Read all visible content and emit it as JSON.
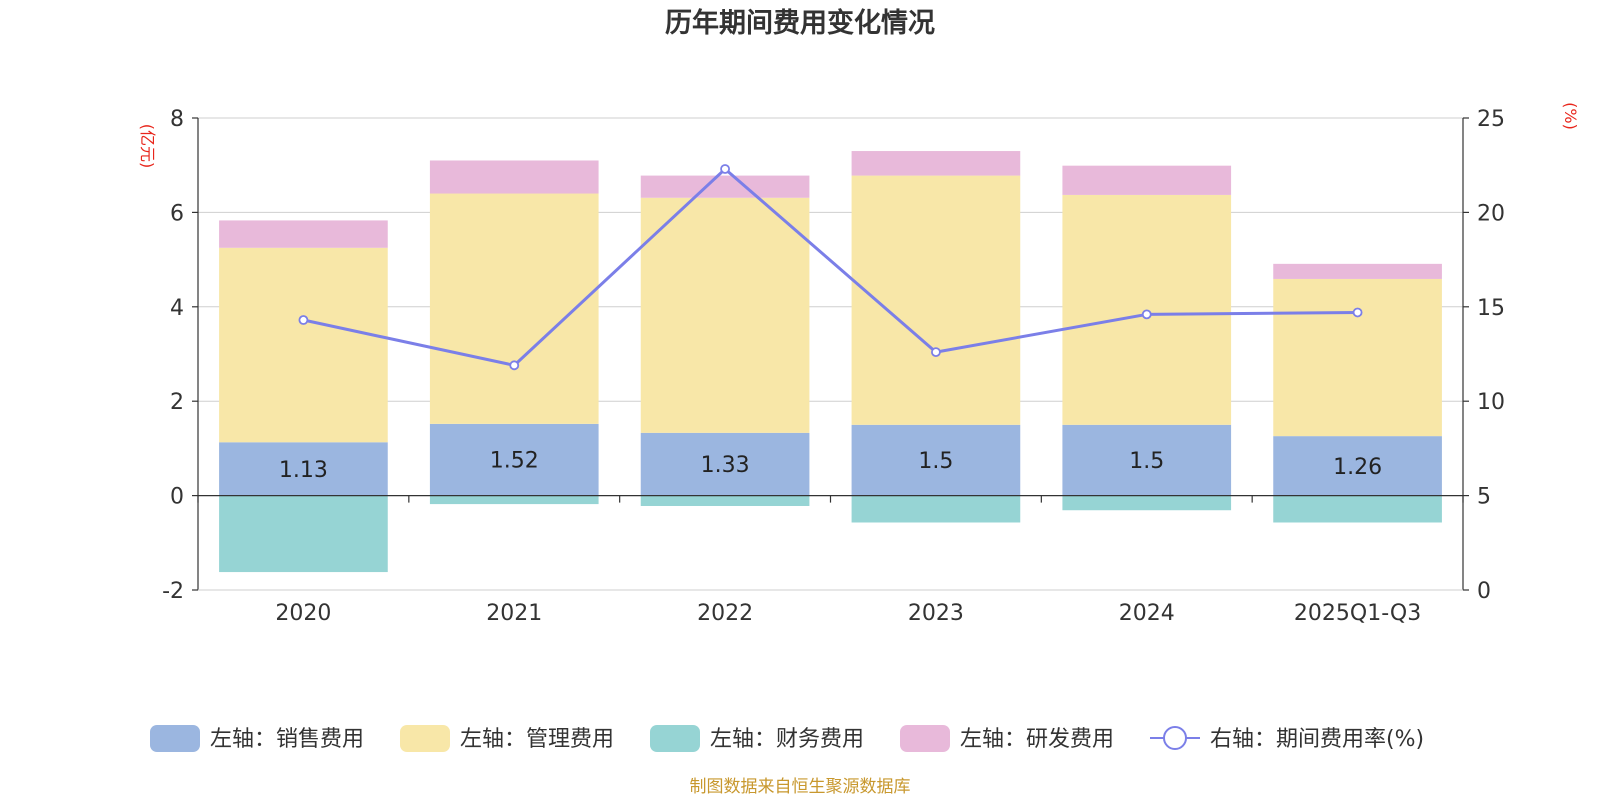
{
  "chart_data": {
    "type": "bar",
    "title": "历年期间费用变化情况",
    "categories": [
      "2020",
      "2021",
      "2022",
      "2023",
      "2024",
      "2025Q1-Q3"
    ],
    "left_axis": {
      "unit": "(亿元)",
      "ylim": [
        -2,
        8
      ],
      "ticks": [
        -2,
        0,
        2,
        4,
        6,
        8
      ]
    },
    "right_axis": {
      "unit": "(%)",
      "ylim": [
        0,
        25
      ],
      "ticks": [
        0,
        5,
        10,
        15,
        20,
        25
      ]
    },
    "series": [
      {
        "key": "sales",
        "name": "左轴：销售费用",
        "axis": "left",
        "color": "#9bb6e0",
        "values": [
          1.13,
          1.52,
          1.33,
          1.5,
          1.5,
          1.26
        ],
        "labels": [
          "1.13",
          "1.52",
          "1.33",
          "1.5",
          "1.5",
          "1.26"
        ]
      },
      {
        "key": "admin",
        "name": "左轴：管理费用",
        "axis": "left",
        "color": "#f8e7a8",
        "values": [
          4.12,
          4.88,
          4.98,
          5.28,
          4.87,
          3.33
        ]
      },
      {
        "key": "finance",
        "name": "左轴：财务费用",
        "axis": "left",
        "color": "#96d4d4",
        "values": [
          -1.62,
          -0.18,
          -0.22,
          -0.57,
          -0.31,
          -0.57
        ]
      },
      {
        "key": "rd",
        "name": "左轴：研发费用",
        "axis": "left",
        "color": "#e8b9da",
        "values": [
          0.58,
          0.7,
          0.47,
          0.52,
          0.62,
          0.32
        ]
      },
      {
        "key": "rate",
        "name": "右轴：期间费用率(%)",
        "axis": "right",
        "type": "line",
        "color": "#7b7fe8",
        "values": [
          14.3,
          11.9,
          22.3,
          12.6,
          14.6,
          14.7
        ]
      }
    ],
    "grid": true,
    "legend_position": "bottom",
    "source": "制图数据来自恒生聚源数据库"
  }
}
